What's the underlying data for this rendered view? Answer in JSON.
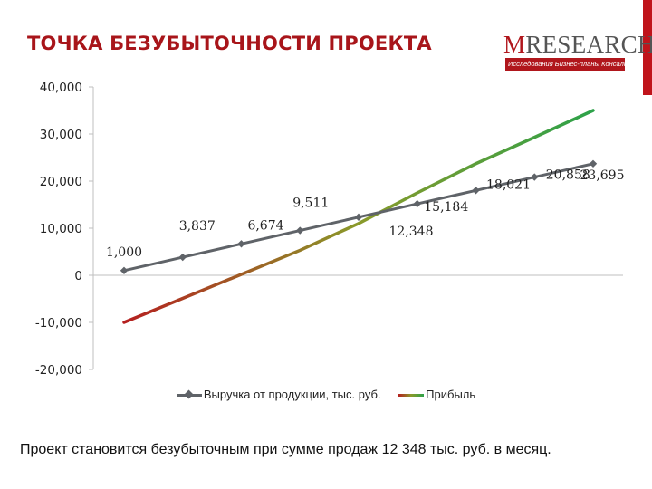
{
  "slide": {
    "title": "ТОЧКА БЕЗУБЫТОЧНОСТИ ПРОЕКТА",
    "conclusion": "Проект становится безубыточным при сумме продаж 12 348 тыс. руб. в месяц."
  },
  "logo": {
    "first_letter": "M",
    "rest": "RESEARCH",
    "tagline": "Исследования  Бизнес-планы  Консалтинг",
    "brand_color": "#b0161c"
  },
  "chart_data": {
    "type": "line",
    "title": "",
    "xlabel": "",
    "ylabel": "",
    "ylim": [
      -20000,
      40000
    ],
    "yticks": [
      40000,
      30000,
      20000,
      10000,
      0,
      -10000,
      -20000
    ],
    "ytick_labels": [
      "40,000",
      "30,000",
      "20,000",
      "10,000",
      "0",
      "-10,000",
      "-20,000"
    ],
    "grid": false,
    "legend_position": "bottom",
    "series": [
      {
        "name": "Выручка от продукции, тыс. руб.",
        "color": "#5f6368",
        "marker": "diamond",
        "values": [
          1000,
          3837,
          6674,
          9511,
          12348,
          15184,
          18021,
          20858,
          23695
        ],
        "labels": [
          "1,000",
          "3,837",
          "6,674",
          "9,511",
          "12,348",
          "15,184",
          "18,021",
          "20,858",
          "23,695"
        ]
      },
      {
        "name": "Прибыль",
        "color_start": "#b51f1f",
        "color_mid": "#8a9a2a",
        "color_end": "#2da24a",
        "values": [
          -10000,
          -4900,
          200,
          5300,
          11000,
          17500,
          23700,
          29300,
          35000
        ]
      }
    ]
  }
}
